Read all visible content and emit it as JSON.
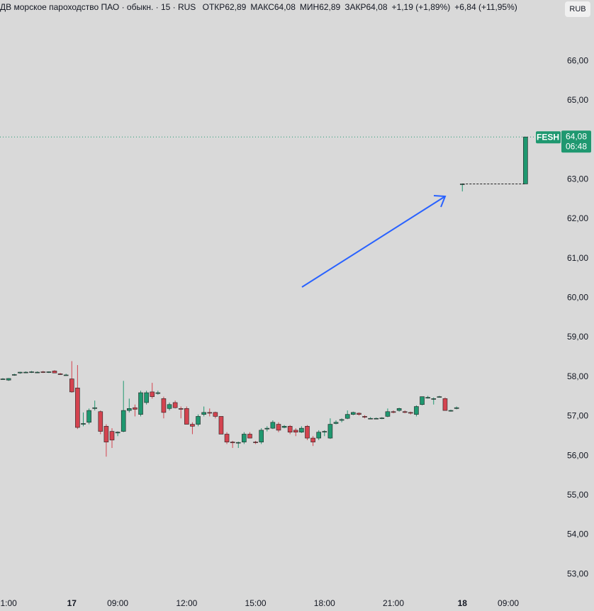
{
  "chart_data": {
    "type": "candlestick",
    "title": "ДВ морское пароходство ПАО · обыкн. · 15 · RUS",
    "stats": [
      {
        "label": "ОТКР",
        "value": "62,89"
      },
      {
        "label": "МАКС",
        "value": "64,08"
      },
      {
        "label": "МИН",
        "value": "62,89"
      },
      {
        "label": "ЗАКР",
        "value": "64,08"
      }
    ],
    "changes": [
      "+1,19 (+1,89%)",
      "+6,84 (+11,95%)"
    ],
    "currency": "RUB",
    "symbol": "FESH",
    "last_price": {
      "value": 64.08,
      "label": "64,08"
    },
    "countdown": "06:48",
    "up_color": "#1f9870",
    "down_color": "#d4434f",
    "open": [
      57.95,
      57.92,
      58.05,
      58.1,
      58.12,
      58.12,
      58.12,
      58.13,
      58.12,
      58.15,
      58.08,
      58.05,
      57.95,
      57.72,
      56.8,
      56.85,
      57.2,
      57.12,
      56.75,
      56.62,
      56.58,
      56.62,
      57.15,
      57.22,
      57.05,
      57.35,
      57.62,
      57.58,
      57.45,
      57.2,
      57.35,
      57.2,
      57.2,
      56.8,
      56.8,
      57.05,
      57.1,
      57.1,
      57.0,
      56.55,
      56.35,
      56.33,
      56.35,
      56.55,
      56.35,
      56.35,
      56.68,
      56.7,
      56.8,
      56.72,
      56.75,
      56.65,
      56.6,
      56.75,
      56.45,
      56.45,
      56.6,
      56.45,
      56.82,
      56.9,
      56.95,
      57.05,
      57.08,
      57.0,
      56.95,
      56.95,
      56.95,
      57.0,
      57.12,
      57.15,
      57.12,
      57.1,
      57.05,
      57.3,
      57.48,
      57.45,
      57.5,
      57.45,
      57.15,
      57.2,
      62.88,
      null,
      null,
      null,
      null,
      null,
      null,
      null,
      null,
      null,
      null,
      62.89
    ],
    "high": [
      57.97,
      57.97,
      58.08,
      58.13,
      58.14,
      58.15,
      58.14,
      58.15,
      58.14,
      58.17,
      58.1,
      58.08,
      58.4,
      58.3,
      57.1,
      57.2,
      57.4,
      57.15,
      56.8,
      56.7,
      56.62,
      57.9,
      57.45,
      57.3,
      57.65,
      57.65,
      57.85,
      57.65,
      57.5,
      57.35,
      57.4,
      57.25,
      57.25,
      56.85,
      57.05,
      57.25,
      57.2,
      57.12,
      57.0,
      56.6,
      56.38,
      56.36,
      56.6,
      56.6,
      56.38,
      56.7,
      56.75,
      56.9,
      56.85,
      56.78,
      56.78,
      56.7,
      56.75,
      56.78,
      56.5,
      56.65,
      56.65,
      56.95,
      56.9,
      56.95,
      57.15,
      57.12,
      57.1,
      57.03,
      56.98,
      56.97,
      56.98,
      57.2,
      57.15,
      57.22,
      57.15,
      57.12,
      57.28,
      57.5,
      57.52,
      57.48,
      57.52,
      57.48,
      57.17,
      57.25,
      62.9,
      null,
      null,
      null,
      null,
      null,
      null,
      null,
      null,
      null,
      null,
      64.08
    ],
    "low": [
      57.93,
      57.9,
      58.03,
      58.08,
      58.1,
      58.1,
      58.1,
      58.1,
      58.1,
      58.1,
      58.05,
      58.03,
      57.6,
      56.68,
      56.75,
      56.8,
      57.15,
      56.55,
      55.98,
      56.2,
      56.5,
      56.6,
      57.1,
      57.0,
      57.0,
      57.3,
      57.45,
      57.55,
      56.95,
      57.15,
      57.2,
      56.95,
      56.8,
      56.55,
      56.75,
      57.0,
      57.0,
      56.95,
      56.55,
      56.3,
      56.2,
      56.2,
      56.3,
      56.45,
      56.3,
      56.3,
      56.62,
      56.68,
      56.6,
      56.7,
      56.55,
      56.5,
      56.58,
      56.4,
      56.25,
      56.4,
      56.5,
      56.43,
      56.8,
      56.85,
      56.93,
      57.03,
      57.02,
      56.95,
      56.93,
      56.93,
      56.93,
      56.98,
      57.08,
      57.12,
      57.08,
      57.05,
      57.0,
      57.28,
      57.45,
      57.3,
      57.48,
      57.15,
      57.12,
      57.18,
      62.7,
      null,
      null,
      null,
      null,
      null,
      null,
      null,
      null,
      null,
      null,
      62.89
    ],
    "close": [
      57.95,
      57.96,
      58.06,
      58.12,
      58.12,
      58.13,
      58.12,
      58.12,
      58.13,
      58.1,
      58.06,
      58.05,
      57.62,
      56.72,
      56.82,
      57.15,
      57.22,
      56.62,
      56.35,
      56.4,
      56.6,
      57.15,
      57.2,
      57.18,
      57.6,
      57.6,
      57.5,
      57.6,
      57.1,
      57.3,
      57.22,
      57.18,
      56.8,
      56.75,
      57.0,
      57.1,
      57.08,
      57.0,
      56.55,
      56.35,
      56.33,
      56.34,
      56.55,
      56.45,
      56.34,
      56.65,
      56.7,
      56.85,
      56.65,
      56.75,
      56.6,
      56.6,
      56.7,
      56.45,
      56.35,
      56.6,
      56.62,
      56.8,
      56.85,
      56.92,
      57.05,
      57.1,
      57.05,
      56.98,
      56.95,
      56.95,
      56.96,
      57.12,
      57.1,
      57.2,
      57.1,
      57.08,
      57.25,
      57.5,
      57.48,
      57.45,
      57.5,
      57.15,
      57.15,
      57.22,
      62.89,
      null,
      null,
      null,
      null,
      null,
      null,
      null,
      null,
      null,
      null,
      64.08
    ],
    "xlim": [
      -0.5,
      97
    ],
    "xticks": [
      {
        "value": 1,
        "label": "1:00"
      },
      {
        "value": 12,
        "label": "17"
      },
      {
        "value": 20,
        "label": "09:00"
      },
      {
        "value": 32,
        "label": "12:00"
      },
      {
        "value": 44,
        "label": "15:00"
      },
      {
        "value": 56,
        "label": "18:00"
      },
      {
        "value": 68,
        "label": "21:00"
      },
      {
        "value": 80,
        "label": "18"
      },
      {
        "value": 88,
        "label": "09:00"
      }
    ],
    "ylim": [
      52.5,
      67.55
    ],
    "yticks": [
      {
        "value": 53,
        "label": "53,00"
      },
      {
        "value": 54,
        "label": "54,00"
      },
      {
        "value": 55,
        "label": "55,00"
      },
      {
        "value": 56,
        "label": "56,00"
      },
      {
        "value": 57,
        "label": "57,00"
      },
      {
        "value": 58,
        "label": "58,00"
      },
      {
        "value": 59,
        "label": "59,00"
      },
      {
        "value": 60,
        "label": "60,00"
      },
      {
        "value": 61,
        "label": "61,00"
      },
      {
        "value": 62,
        "label": "62,00"
      },
      {
        "value": 63,
        "label": "63,00"
      },
      {
        "value": 64,
        "label": "64,00"
      },
      {
        "value": 65,
        "label": "65,00"
      },
      {
        "value": 66,
        "label": "66,00"
      }
    ]
  }
}
